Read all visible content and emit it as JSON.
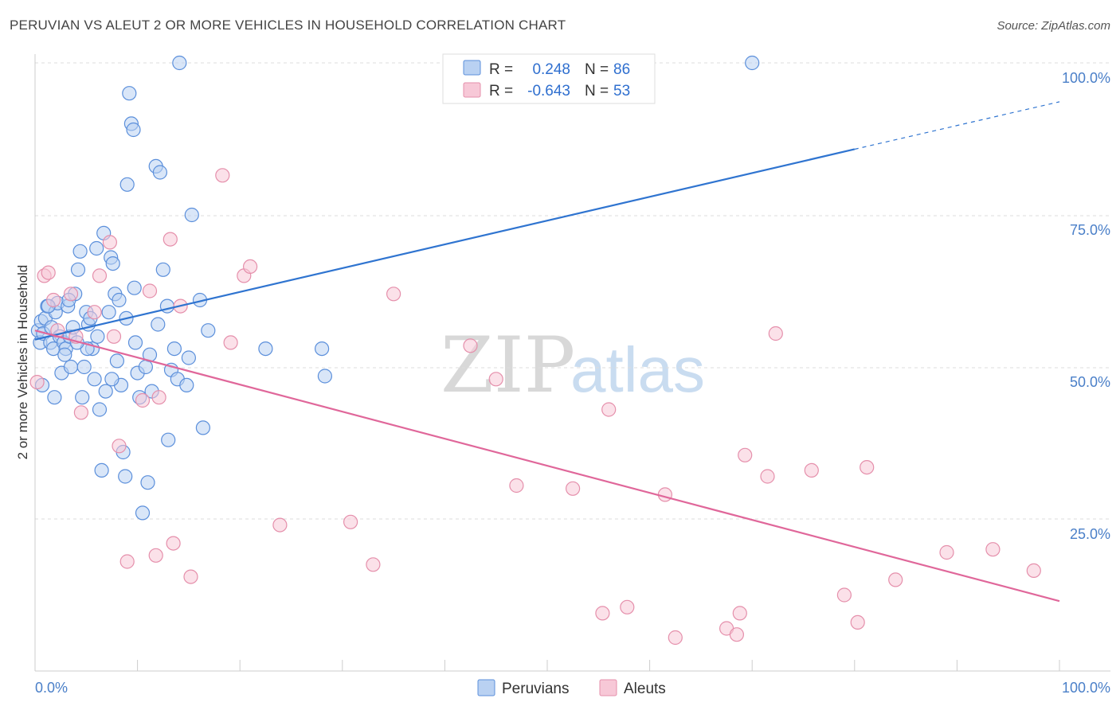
{
  "chart_data": {
    "type": "scatter",
    "title": "PERUVIAN VS ALEUT 2 OR MORE VEHICLES IN HOUSEHOLD CORRELATION CHART",
    "source": "Source: ZipAtlas.com",
    "ylabel": "2 or more Vehicles in Household",
    "xlabel": "",
    "xlim": [
      0,
      100
    ],
    "ylim": [
      0,
      105
    ],
    "x_tick_labels": [
      "0.0%",
      "100.0%"
    ],
    "y_ticks": [
      25,
      50,
      75,
      100
    ],
    "y_tick_labels": [
      "25.0%",
      "50.0%",
      "75.0%",
      "100.0%"
    ],
    "watermark": {
      "zip": "ZIP",
      "atlas": "atlas"
    },
    "legend": {
      "r_label": "R =",
      "n_label": "N =",
      "entries": [
        {
          "r": "0.248",
          "n": "86"
        },
        {
          "r": "-0.643",
          "n": "53"
        }
      ]
    },
    "series": [
      {
        "name": "Peruvians",
        "color": "#5b8fdb",
        "fill": "#b9d1f2",
        "trend": {
          "x0": 0,
          "y0": 54.5,
          "x1": 80,
          "y1": 85.8,
          "dash_to_x": 100,
          "dash_to_y": 93.6,
          "line_color": "#2f74d0"
        },
        "points": [
          [
            0.3,
            56
          ],
          [
            0.5,
            54
          ],
          [
            0.6,
            57.5
          ],
          [
            0.8,
            55.5
          ],
          [
            1.0,
            58
          ],
          [
            1.2,
            60
          ],
          [
            1.5,
            54
          ],
          [
            1.6,
            56.5
          ],
          [
            1.8,
            53
          ],
          [
            2.0,
            59
          ],
          [
            2.2,
            60.5
          ],
          [
            2.4,
            55
          ],
          [
            2.6,
            49
          ],
          [
            2.8,
            54
          ],
          [
            3.0,
            53
          ],
          [
            3.2,
            60
          ],
          [
            3.4,
            55
          ],
          [
            3.5,
            50
          ],
          [
            3.7,
            56.5
          ],
          [
            3.9,
            62
          ],
          [
            4.2,
            66
          ],
          [
            4.4,
            69
          ],
          [
            4.6,
            45
          ],
          [
            4.8,
            50
          ],
          [
            5.0,
            59
          ],
          [
            5.2,
            57
          ],
          [
            5.4,
            58
          ],
          [
            5.6,
            53
          ],
          [
            5.8,
            48
          ],
          [
            6.0,
            69.5
          ],
          [
            6.3,
            43
          ],
          [
            6.5,
            33
          ],
          [
            6.7,
            72
          ],
          [
            6.9,
            46
          ],
          [
            7.2,
            59
          ],
          [
            7.4,
            68
          ],
          [
            7.6,
            67
          ],
          [
            7.8,
            62
          ],
          [
            8.0,
            51
          ],
          [
            8.2,
            61
          ],
          [
            8.4,
            47
          ],
          [
            8.6,
            36
          ],
          [
            8.8,
            32
          ],
          [
            9.0,
            80
          ],
          [
            9.2,
            95
          ],
          [
            9.4,
            90
          ],
          [
            9.6,
            89
          ],
          [
            9.8,
            54
          ],
          [
            10.0,
            49
          ],
          [
            10.2,
            45
          ],
          [
            10.5,
            26
          ],
          [
            10.8,
            50
          ],
          [
            11.0,
            31
          ],
          [
            11.2,
            52
          ],
          [
            11.4,
            46
          ],
          [
            11.8,
            83
          ],
          [
            12.2,
            82
          ],
          [
            12.5,
            66
          ],
          [
            12.9,
            60
          ],
          [
            13.0,
            38
          ],
          [
            13.3,
            49.5
          ],
          [
            13.6,
            53
          ],
          [
            13.9,
            48
          ],
          [
            14.1,
            100
          ],
          [
            14.8,
            47
          ],
          [
            15.0,
            51.5
          ],
          [
            15.3,
            75
          ],
          [
            16.1,
            61
          ],
          [
            16.4,
            40
          ],
          [
            16.9,
            56
          ],
          [
            22.5,
            53
          ],
          [
            28.0,
            53
          ],
          [
            28.3,
            48.5
          ],
          [
            70.0,
            100
          ],
          [
            1.9,
            45
          ],
          [
            2.9,
            52
          ],
          [
            5.1,
            53
          ],
          [
            0.7,
            47
          ],
          [
            1.3,
            60
          ],
          [
            4.1,
            54
          ],
          [
            6.1,
            55
          ],
          [
            3.3,
            61
          ],
          [
            7.5,
            48
          ],
          [
            9.7,
            63
          ],
          [
            12.0,
            57
          ],
          [
            8.9,
            58
          ]
        ]
      },
      {
        "name": "Aleuts",
        "color": "#e58fab",
        "fill": "#f7c8d7",
        "trend": {
          "x0": 0,
          "y0": 56,
          "x1": 100,
          "y1": 11.5,
          "line_color": "#e0679a"
        },
        "points": [
          [
            0.2,
            47.5
          ],
          [
            0.9,
            65
          ],
          [
            1.3,
            65.5
          ],
          [
            1.8,
            61
          ],
          [
            2.2,
            56
          ],
          [
            3.5,
            62
          ],
          [
            4.5,
            42.5
          ],
          [
            5.8,
            59
          ],
          [
            6.3,
            65
          ],
          [
            7.3,
            70.5
          ],
          [
            7.7,
            55
          ],
          [
            9.0,
            18
          ],
          [
            10.5,
            44.5
          ],
          [
            11.2,
            62.5
          ],
          [
            11.8,
            19
          ],
          [
            12.1,
            45
          ],
          [
            13.2,
            71
          ],
          [
            13.5,
            21
          ],
          [
            14.2,
            60
          ],
          [
            15.2,
            15.5
          ],
          [
            18.3,
            81.5
          ],
          [
            19.1,
            54
          ],
          [
            20.4,
            65
          ],
          [
            21.0,
            66.5
          ],
          [
            23.9,
            24
          ],
          [
            30.8,
            24.5
          ],
          [
            33.0,
            17.5
          ],
          [
            35.0,
            62
          ],
          [
            42.5,
            53.5
          ],
          [
            47.0,
            30.5
          ],
          [
            52.5,
            30
          ],
          [
            55.4,
            9.5
          ],
          [
            56.0,
            43
          ],
          [
            57.8,
            10.5
          ],
          [
            61.5,
            29
          ],
          [
            62.5,
            5.5
          ],
          [
            67.5,
            7
          ],
          [
            68.5,
            6
          ],
          [
            68.8,
            9.5
          ],
          [
            69.3,
            35.5
          ],
          [
            71.5,
            32
          ],
          [
            72.3,
            55.5
          ],
          [
            75.8,
            33
          ],
          [
            79.0,
            12.5
          ],
          [
            80.3,
            8
          ],
          [
            81.2,
            33.5
          ],
          [
            84.0,
            15
          ],
          [
            89.0,
            19.5
          ],
          [
            93.5,
            20
          ],
          [
            97.5,
            16.5
          ],
          [
            4.0,
            55
          ],
          [
            8.2,
            37
          ],
          [
            45.0,
            48
          ]
        ]
      }
    ]
  }
}
